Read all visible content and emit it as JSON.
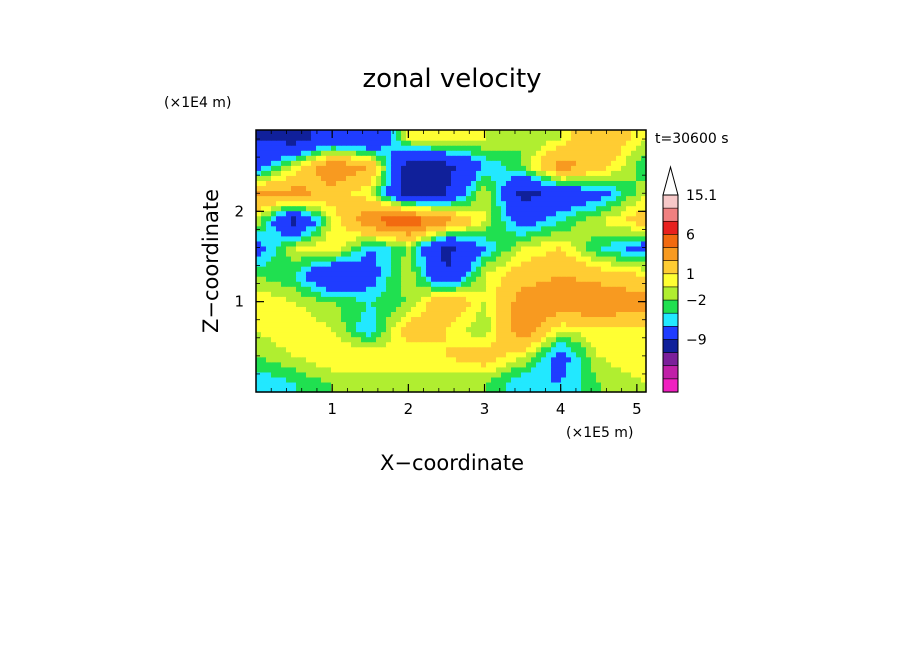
{
  "chart_data": {
    "type": "heatmap",
    "title": "zonal velocity",
    "xlabel": "X−coordinate",
    "ylabel": "Z−coordinate",
    "x_unit": "(×1E5 m)",
    "y_unit": "(×1E4 m)",
    "time_label": "t=30600 s",
    "xlim": [
      0,
      5.12
    ],
    "ylim": [
      0,
      2.9
    ],
    "x_ticks": [
      1,
      2,
      3,
      4,
      5
    ],
    "y_ticks": [
      1,
      2
    ],
    "grid": false,
    "colorbar": {
      "labeled_levels": [
        "15.1",
        "6",
        "1",
        "−2",
        "−9"
      ],
      "colors_top_to_bottom": [
        "#f7c8c8",
        "#f08080",
        "#e8201e",
        "#f26a10",
        "#f89a20",
        "#ffcc33",
        "#ffff33",
        "#b0ee30",
        "#20e050",
        "#22e8ff",
        "#1f3cff",
        "#10209a",
        "#7b1f9a",
        "#c020a8",
        "#f020c0"
      ]
    },
    "field_samples": {
      "x": [
        0.0,
        0.5,
        1.0,
        1.5,
        2.0,
        2.5,
        3.0,
        3.5,
        4.0,
        4.5,
        5.12
      ],
      "z": [
        0.1,
        0.4,
        0.7,
        1.0,
        1.3,
        1.6,
        1.9,
        2.2,
        2.5,
        2.8
      ],
      "u": [
        [
          -2,
          -1,
          0,
          0,
          1,
          0,
          0,
          -2,
          -2,
          0,
          1
        ],
        [
          0,
          1,
          2,
          2,
          1,
          2,
          3,
          1,
          -3,
          1,
          2
        ],
        [
          1,
          2,
          1,
          -2,
          3,
          2,
          0,
          6,
          1,
          2,
          2
        ],
        [
          2,
          1,
          0,
          -1,
          0,
          4,
          1,
          5,
          6,
          6,
          5
        ],
        [
          0,
          -1,
          -5,
          -3,
          1,
          -5,
          1,
          3,
          4,
          3,
          2
        ],
        [
          -3,
          1,
          2,
          -2,
          0,
          -6,
          -2,
          1,
          2,
          -1,
          -3
        ],
        [
          1,
          -6,
          1,
          6,
          8,
          5,
          1,
          -3,
          -1,
          1,
          3
        ],
        [
          4,
          5,
          3,
          1,
          -6,
          -5,
          1,
          -6,
          -4,
          -3,
          1
        ],
        [
          -3,
          1,
          6,
          4,
          -7,
          -6,
          -2,
          0,
          5,
          3,
          -1
        ],
        [
          -5,
          -6,
          -4,
          -5,
          1,
          2,
          1,
          0,
          1,
          4,
          1
        ]
      ]
    }
  }
}
